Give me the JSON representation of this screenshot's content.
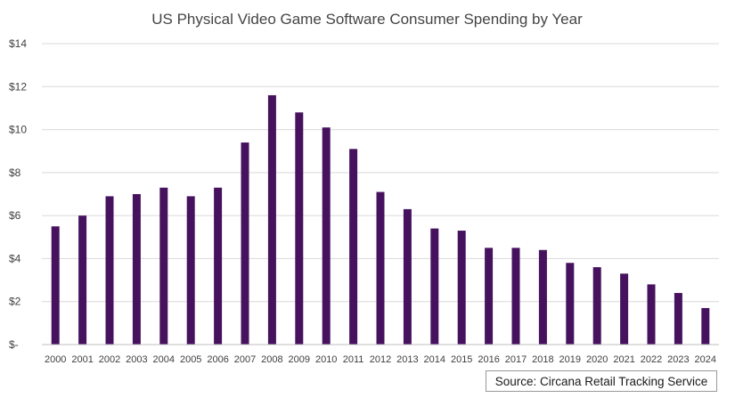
{
  "chart_data": {
    "type": "bar",
    "title": "US Physical Video Game Software Consumer Spending by Year",
    "xlabel": "",
    "ylabel": "",
    "categories": [
      "2000",
      "2001",
      "2002",
      "2003",
      "2004",
      "2005",
      "2006",
      "2007",
      "2008",
      "2009",
      "2010",
      "2011",
      "2012",
      "2013",
      "2014",
      "2015",
      "2016",
      "2017",
      "2018",
      "2019",
      "2020",
      "2021",
      "2022",
      "2023",
      "2024"
    ],
    "values": [
      5.5,
      6.0,
      6.9,
      7.0,
      7.3,
      6.9,
      7.3,
      9.4,
      11.6,
      10.8,
      10.1,
      9.1,
      7.1,
      6.3,
      5.4,
      5.3,
      4.5,
      4.5,
      4.4,
      3.8,
      3.6,
      3.3,
      2.8,
      2.4,
      1.7
    ],
    "ylim": [
      0,
      14
    ],
    "yticks": [
      0,
      2,
      4,
      6,
      8,
      10,
      12,
      14
    ],
    "ytick_labels": [
      "$-",
      "$2",
      "$4",
      "$6",
      "$8",
      "$10",
      "$12",
      "$14"
    ],
    "grid": true,
    "bar_color": "#46125e",
    "grid_color": "#d9d9d9",
    "source": "Source: Circana Retail Tracking Service"
  }
}
